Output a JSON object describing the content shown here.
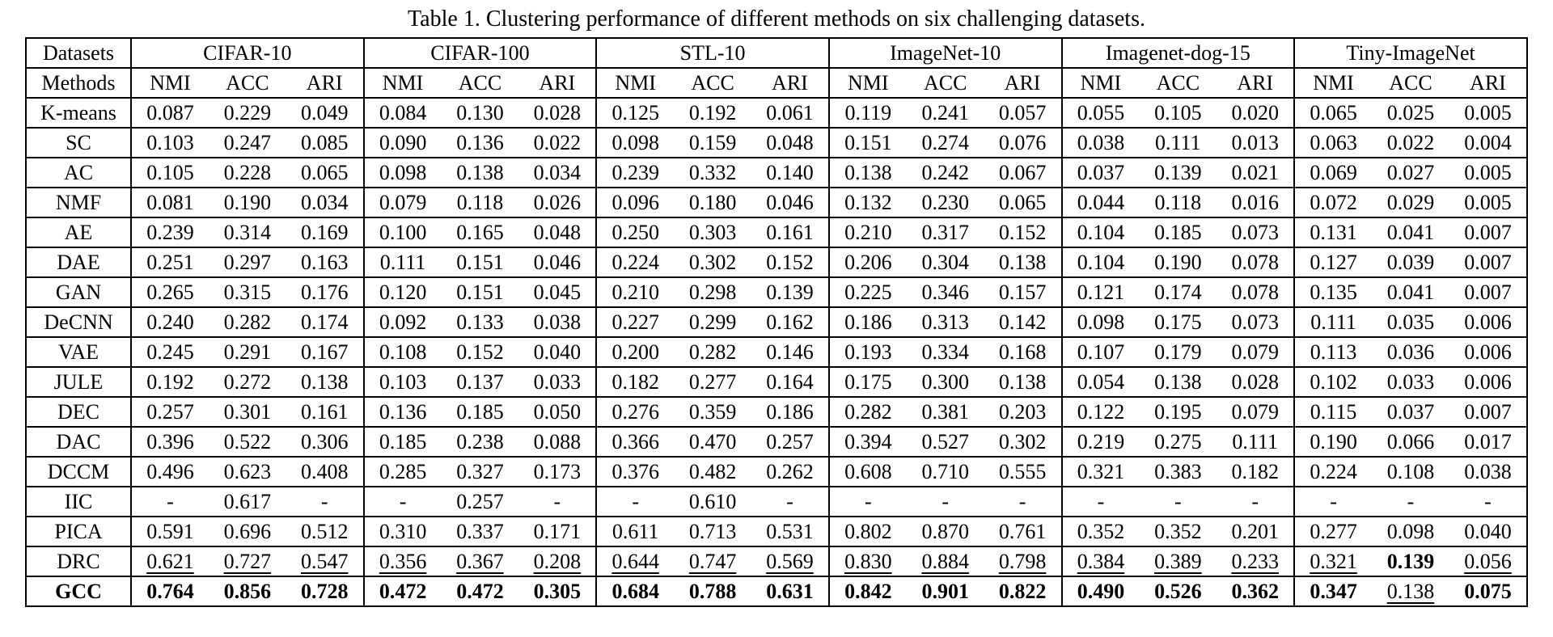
{
  "title": "Table 1. Clustering performance of different methods on six challenging datasets.",
  "table": {
    "corner_header": "Datasets",
    "methods_header": "Methods",
    "datasets": [
      "CIFAR-10",
      "CIFAR-100",
      "STL-10",
      "ImageNet-10",
      "Imagenet-dog-15",
      "Tiny-ImageNet"
    ],
    "metrics": [
      "NMI",
      "ACC",
      "ARI"
    ],
    "rows": [
      {
        "method": "K-means",
        "values": [
          "0.087",
          "0.229",
          "0.049",
          "0.084",
          "0.130",
          "0.028",
          "0.125",
          "0.192",
          "0.061",
          "0.119",
          "0.241",
          "0.057",
          "0.055",
          "0.105",
          "0.020",
          "0.065",
          "0.025",
          "0.005"
        ]
      },
      {
        "method": "SC",
        "values": [
          "0.103",
          "0.247",
          "0.085",
          "0.090",
          "0.136",
          "0.022",
          "0.098",
          "0.159",
          "0.048",
          "0.151",
          "0.274",
          "0.076",
          "0.038",
          "0.111",
          "0.013",
          "0.063",
          "0.022",
          "0.004"
        ]
      },
      {
        "method": "AC",
        "values": [
          "0.105",
          "0.228",
          "0.065",
          "0.098",
          "0.138",
          "0.034",
          "0.239",
          "0.332",
          "0.140",
          "0.138",
          "0.242",
          "0.067",
          "0.037",
          "0.139",
          "0.021",
          "0.069",
          "0.027",
          "0.005"
        ]
      },
      {
        "method": "NMF",
        "values": [
          "0.081",
          "0.190",
          "0.034",
          "0.079",
          "0.118",
          "0.026",
          "0.096",
          "0.180",
          "0.046",
          "0.132",
          "0.230",
          "0.065",
          "0.044",
          "0.118",
          "0.016",
          "0.072",
          "0.029",
          "0.005"
        ]
      },
      {
        "method": "AE",
        "values": [
          "0.239",
          "0.314",
          "0.169",
          "0.100",
          "0.165",
          "0.048",
          "0.250",
          "0.303",
          "0.161",
          "0.210",
          "0.317",
          "0.152",
          "0.104",
          "0.185",
          "0.073",
          "0.131",
          "0.041",
          "0.007"
        ]
      },
      {
        "method": "DAE",
        "values": [
          "0.251",
          "0.297",
          "0.163",
          "0.111",
          "0.151",
          "0.046",
          "0.224",
          "0.302",
          "0.152",
          "0.206",
          "0.304",
          "0.138",
          "0.104",
          "0.190",
          "0.078",
          "0.127",
          "0.039",
          "0.007"
        ]
      },
      {
        "method": "GAN",
        "values": [
          "0.265",
          "0.315",
          "0.176",
          "0.120",
          "0.151",
          "0.045",
          "0.210",
          "0.298",
          "0.139",
          "0.225",
          "0.346",
          "0.157",
          "0.121",
          "0.174",
          "0.078",
          "0.135",
          "0.041",
          "0.007"
        ]
      },
      {
        "method": "DeCNN",
        "values": [
          "0.240",
          "0.282",
          "0.174",
          "0.092",
          "0.133",
          "0.038",
          "0.227",
          "0.299",
          "0.162",
          "0.186",
          "0.313",
          "0.142",
          "0.098",
          "0.175",
          "0.073",
          "0.111",
          "0.035",
          "0.006"
        ]
      },
      {
        "method": "VAE",
        "values": [
          "0.245",
          "0.291",
          "0.167",
          "0.108",
          "0.152",
          "0.040",
          "0.200",
          "0.282",
          "0.146",
          "0.193",
          "0.334",
          "0.168",
          "0.107",
          "0.179",
          "0.079",
          "0.113",
          "0.036",
          "0.006"
        ]
      },
      {
        "method": "JULE",
        "values": [
          "0.192",
          "0.272",
          "0.138",
          "0.103",
          "0.137",
          "0.033",
          "0.182",
          "0.277",
          "0.164",
          "0.175",
          "0.300",
          "0.138",
          "0.054",
          "0.138",
          "0.028",
          "0.102",
          "0.033",
          "0.006"
        ]
      },
      {
        "method": "DEC",
        "values": [
          "0.257",
          "0.301",
          "0.161",
          "0.136",
          "0.185",
          "0.050",
          "0.276",
          "0.359",
          "0.186",
          "0.282",
          "0.381",
          "0.203",
          "0.122",
          "0.195",
          "0.079",
          "0.115",
          "0.037",
          "0.007"
        ]
      },
      {
        "method": "DAC",
        "values": [
          "0.396",
          "0.522",
          "0.306",
          "0.185",
          "0.238",
          "0.088",
          "0.366",
          "0.470",
          "0.257",
          "0.394",
          "0.527",
          "0.302",
          "0.219",
          "0.275",
          "0.111",
          "0.190",
          "0.066",
          "0.017"
        ]
      },
      {
        "method": "DCCM",
        "values": [
          "0.496",
          "0.623",
          "0.408",
          "0.285",
          "0.327",
          "0.173",
          "0.376",
          "0.482",
          "0.262",
          "0.608",
          "0.710",
          "0.555",
          "0.321",
          "0.383",
          "0.182",
          "0.224",
          "0.108",
          "0.038"
        ]
      },
      {
        "method": "IIC",
        "values": [
          "-",
          "0.617",
          "-",
          "-",
          "0.257",
          "-",
          "-",
          "0.610",
          "-",
          "-",
          "-",
          "-",
          "-",
          "-",
          "-",
          "-",
          "-",
          "-"
        ]
      },
      {
        "method": "PICA",
        "values": [
          "0.591",
          "0.696",
          "0.512",
          "0.310",
          "0.337",
          "0.171",
          "0.611",
          "0.713",
          "0.531",
          "0.802",
          "0.870",
          "0.761",
          "0.352",
          "0.352",
          "0.201",
          "0.277",
          "0.098",
          "0.040"
        ]
      },
      {
        "method": "DRC",
        "values": [
          "0.621",
          "0.727",
          "0.547",
          "0.356",
          "0.367",
          "0.208",
          "0.644",
          "0.747",
          "0.569",
          "0.830",
          "0.884",
          "0.798",
          "0.384",
          "0.389",
          "0.233",
          "0.321",
          "0.139",
          "0.056"
        ],
        "fmt": "uuuuuuuuuuuuuuuubu"
      },
      {
        "method": "GCC",
        "method_fmt": "b",
        "values": [
          "0.764",
          "0.856",
          "0.728",
          "0.472",
          "0.472",
          "0.305",
          "0.684",
          "0.788",
          "0.631",
          "0.842",
          "0.901",
          "0.822",
          "0.490",
          "0.526",
          "0.362",
          "0.347",
          "0.138",
          "0.075"
        ],
        "fmt": "bbbbbbbbbbbbbbbbub"
      }
    ]
  }
}
